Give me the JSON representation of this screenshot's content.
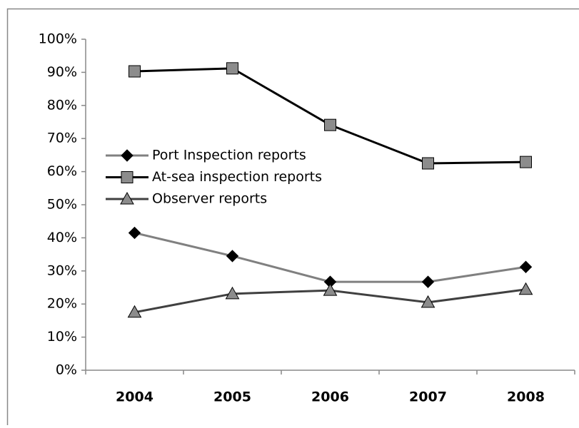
{
  "chart_data": {
    "type": "line",
    "categories": [
      "2004",
      "2005",
      "2006",
      "2007",
      "2008"
    ],
    "series": [
      {
        "name": "Port Inspection reports",
        "color": "#808080",
        "marker": "diamond",
        "marker_color": "#000000",
        "values": [
          41.5,
          34.5,
          26.7,
          26.7,
          31.2
        ]
      },
      {
        "name": "At-sea inspection reports",
        "color": "#000000",
        "marker": "square",
        "marker_color": "#8c8c8c",
        "values": [
          90.3,
          91.2,
          74.1,
          62.5,
          62.9
        ]
      },
      {
        "name": "Observer reports",
        "color": "#404040",
        "marker": "triangle",
        "marker_color": "#8c8c8c",
        "values": [
          17.5,
          23.1,
          24.1,
          20.5,
          24.4
        ]
      }
    ],
    "ylim": [
      0,
      100
    ],
    "yticks": [
      {
        "value": 0,
        "label": "0%"
      },
      {
        "value": 10,
        "label": "10%"
      },
      {
        "value": 20,
        "label": "20%"
      },
      {
        "value": 30,
        "label": "30%"
      },
      {
        "value": 40,
        "label": "40%"
      },
      {
        "value": 50,
        "label": "50%"
      },
      {
        "value": 60,
        "label": "60%"
      },
      {
        "value": 70,
        "label": "70%"
      },
      {
        "value": 80,
        "label": "80%"
      },
      {
        "value": 90,
        "label": "90%"
      },
      {
        "value": 100,
        "label": "100%"
      }
    ],
    "grid": false,
    "legend": "left"
  }
}
